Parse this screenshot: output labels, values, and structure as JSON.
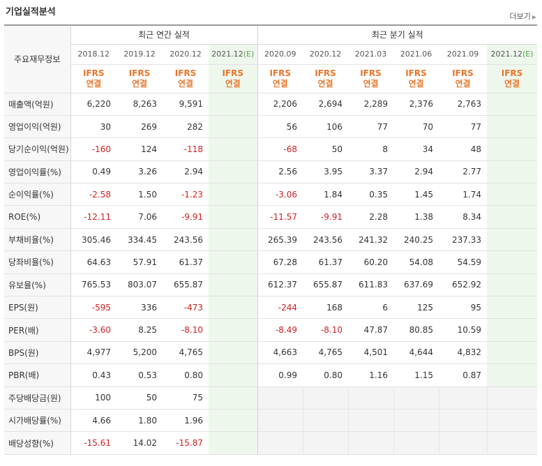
{
  "title": "기업실적분석",
  "more_label": "더보기",
  "row_header": "주요재무정보",
  "annual_group": "최근 연간 실적",
  "quarter_group": "최근 분기 실적",
  "annual_periods": [
    "2018.12",
    "2019.12",
    "2020.12",
    "2021.12"
  ],
  "quarter_periods": [
    "2020.09",
    "2020.12",
    "2021.03",
    "2021.06",
    "2021.09",
    "2021.12"
  ],
  "estimate_mark": "(E)",
  "ifrs_line1": "IFRS",
  "ifrs_line2": "연결",
  "rows": [
    {
      "label": "매출액(억원)",
      "annual": [
        "6,220",
        "8,263",
        "9,591",
        ""
      ],
      "quarter": [
        "2,206",
        "2,694",
        "2,289",
        "2,376",
        "2,763",
        ""
      ]
    },
    {
      "label": "영업이익(억원)",
      "annual": [
        "30",
        "269",
        "282",
        ""
      ],
      "quarter": [
        "56",
        "106",
        "77",
        "70",
        "77",
        ""
      ]
    },
    {
      "label": "당기순이익(억원)",
      "annual": [
        "-160",
        "124",
        "-118",
        ""
      ],
      "quarter": [
        "-68",
        "50",
        "8",
        "34",
        "48",
        ""
      ]
    },
    {
      "label": "영업이익률(%)",
      "annual": [
        "0.49",
        "3.26",
        "2.94",
        ""
      ],
      "quarter": [
        "2.56",
        "3.95",
        "3.37",
        "2.94",
        "2.77",
        ""
      ]
    },
    {
      "label": "순이익률(%)",
      "annual": [
        "-2.58",
        "1.50",
        "-1.23",
        ""
      ],
      "quarter": [
        "-3.06",
        "1.84",
        "0.35",
        "1.45",
        "1.74",
        ""
      ]
    },
    {
      "label": "ROE(%)",
      "annual": [
        "-12.11",
        "7.06",
        "-9.91",
        ""
      ],
      "quarter": [
        "-11.57",
        "-9.91",
        "2.28",
        "1.38",
        "8.34",
        ""
      ]
    },
    {
      "label": "부채비율(%)",
      "annual": [
        "305.46",
        "334.45",
        "243.56",
        ""
      ],
      "quarter": [
        "265.39",
        "243.56",
        "241.32",
        "240.25",
        "237.33",
        ""
      ]
    },
    {
      "label": "당좌비율(%)",
      "annual": [
        "64.63",
        "57.91",
        "61.37",
        ""
      ],
      "quarter": [
        "67.28",
        "61.37",
        "60.20",
        "54.08",
        "54.59",
        ""
      ]
    },
    {
      "label": "유보율(%)",
      "annual": [
        "765.53",
        "803.07",
        "655.87",
        ""
      ],
      "quarter": [
        "612.37",
        "655.87",
        "611.83",
        "637.69",
        "652.92",
        ""
      ]
    },
    {
      "label": "EPS(원)",
      "annual": [
        "-595",
        "336",
        "-473",
        ""
      ],
      "quarter": [
        "-244",
        "168",
        "6",
        "125",
        "95",
        ""
      ]
    },
    {
      "label": "PER(배)",
      "annual": [
        "-3.60",
        "8.25",
        "-8.10",
        ""
      ],
      "quarter": [
        "-8.49",
        "-8.10",
        "47.87",
        "80.85",
        "10.59",
        ""
      ]
    },
    {
      "label": "BPS(원)",
      "annual": [
        "4,977",
        "5,200",
        "4,765",
        ""
      ],
      "quarter": [
        "4,663",
        "4,765",
        "4,501",
        "4,644",
        "4,832",
        ""
      ]
    },
    {
      "label": "PBR(배)",
      "annual": [
        "0.43",
        "0.53",
        "0.80",
        ""
      ],
      "quarter": [
        "0.99",
        "0.80",
        "1.16",
        "1.15",
        "0.87",
        ""
      ]
    },
    {
      "label": "주당배당금(원)",
      "annual": [
        "100",
        "50",
        "75",
        ""
      ],
      "quarter": null
    },
    {
      "label": "시가배당률(%)",
      "annual": [
        "4.66",
        "1.80",
        "1.96",
        ""
      ],
      "quarter": null
    },
    {
      "label": "배당성향(%)",
      "annual": [
        "-15.61",
        "14.02",
        "-15.87",
        ""
      ],
      "quarter": null
    }
  ],
  "block_starts": [
    0,
    3,
    6,
    9,
    13
  ]
}
